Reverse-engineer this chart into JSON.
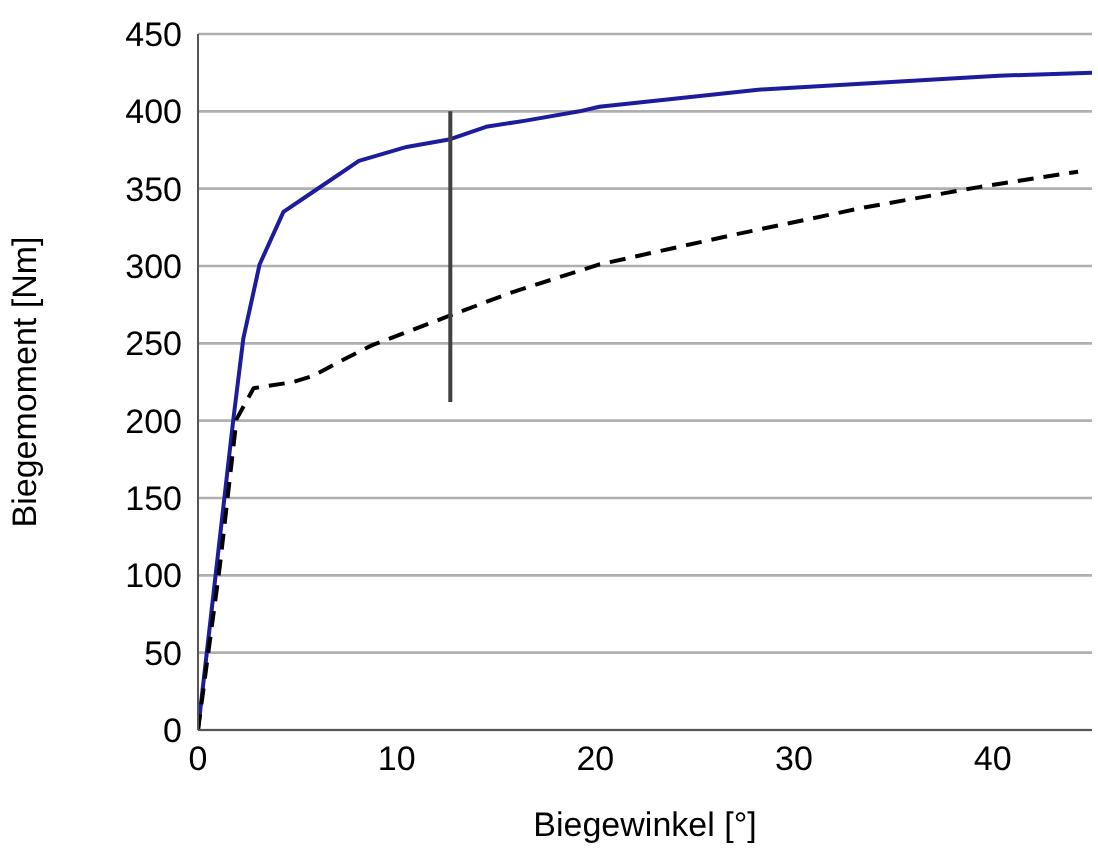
{
  "chart_data": {
    "type": "line",
    "xlabel": "Biegewinkel [°]",
    "ylabel": "Biegemoment [Nm]",
    "xlim": [
      0,
      45
    ],
    "xticks": [
      0,
      10,
      20,
      30,
      40
    ],
    "ylim": [
      0,
      450
    ],
    "yticks": [
      0,
      50,
      100,
      150,
      200,
      250,
      300,
      350,
      400,
      450
    ],
    "grid": "y",
    "marker": "none",
    "series": [
      {
        "color": "#1c1c9c",
        "line_style": "solid",
        "x": [
          0,
          1.78,
          2.28,
          3.1,
          4.3,
          5.8,
          8.1,
          10.5,
          12.7,
          14.5,
          16.5,
          19.2,
          20.2,
          28.2,
          33.6,
          40.3,
          45
        ],
        "values": [
          0,
          201,
          253,
          301,
          335,
          348,
          368,
          377,
          382,
          390,
          394,
          400,
          403,
          414,
          418,
          423,
          425
        ]
      },
      {
        "color": "#000000",
        "line_style": "dashed",
        "x": [
          0,
          1.1,
          1.94,
          2.8,
          4.8,
          5.8,
          7.1,
          8.8,
          12.7,
          15.8,
          20.2,
          26.9,
          33.6,
          39.3,
          44.3
        ],
        "values": [
          0,
          106,
          201,
          221,
          225,
          229,
          238,
          249,
          268,
          283,
          301,
          320,
          338,
          351,
          361
        ]
      },
      {
        "color": "#404040",
        "line_style": "solid",
        "x": [
          12.7,
          12.7
        ],
        "values": [
          212,
          400
        ]
      }
    ]
  }
}
